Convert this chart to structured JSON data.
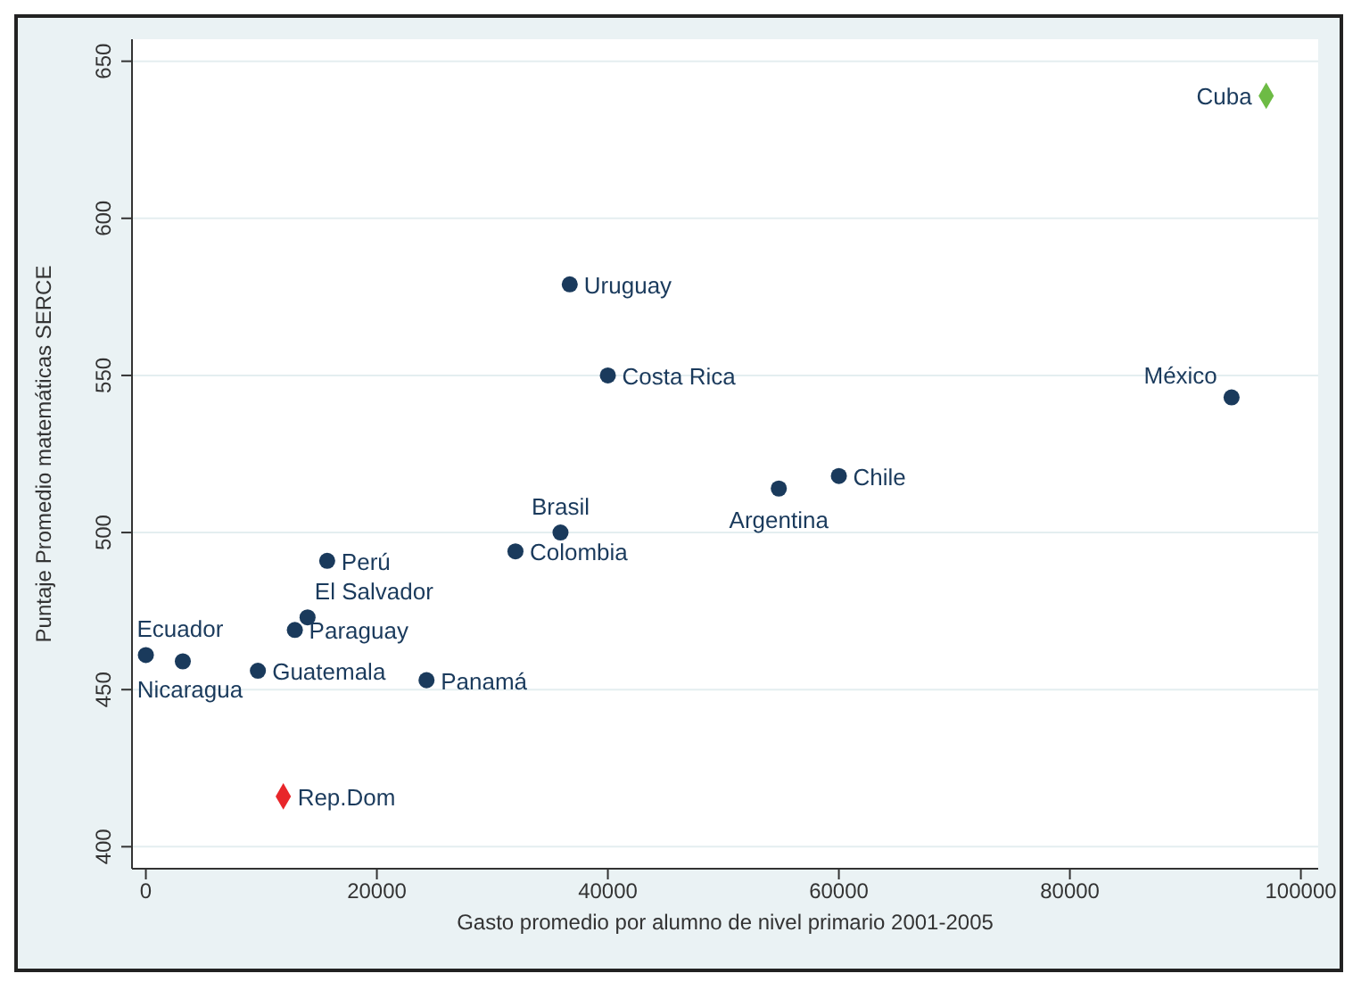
{
  "chart_data": {
    "type": "scatter",
    "xlabel": "Gasto promedio por alumno de nivel primario 2001-2005",
    "ylabel": "Puntaje Promedio matemáticas SERCE",
    "xlim": [
      -1200,
      101500
    ],
    "ylim": [
      393,
      657
    ],
    "xticks": [
      0,
      20000,
      40000,
      60000,
      80000,
      100000
    ],
    "yticks": [
      400,
      450,
      500,
      550,
      600,
      650
    ],
    "grid": "y",
    "series": [
      {
        "color": "#1a3a5c",
        "marker": "circle",
        "x": [
          36700,
          40000,
          94000,
          60000,
          54800,
          35900,
          32000,
          15700,
          14000,
          12900,
          0,
          3200,
          9700,
          24300
        ],
        "values": [
          579,
          550,
          543,
          518,
          514,
          500,
          494,
          491,
          473,
          469,
          461,
          459,
          456,
          453
        ]
      },
      {
        "color": "#e8262a",
        "marker": "diamond",
        "x": [
          11900
        ],
        "values": [
          416
        ]
      },
      {
        "color": "#6dbb45",
        "marker": "diamond",
        "x": [
          97000
        ],
        "values": [
          639
        ]
      }
    ],
    "annotations": [
      {
        "text": "Uruguay",
        "x": 36700,
        "y": 579
      },
      {
        "text": "Costa Rica",
        "x": 40000,
        "y": 550
      },
      {
        "text": "México",
        "x": 94000,
        "y": 543
      },
      {
        "text": "Chile",
        "x": 60000,
        "y": 518
      },
      {
        "text": "Argentina",
        "x": 54800,
        "y": 514
      },
      {
        "text": "Brasil",
        "x": 35900,
        "y": 500
      },
      {
        "text": "Colombia",
        "x": 32000,
        "y": 494
      },
      {
        "text": "Perú",
        "x": 15700,
        "y": 491
      },
      {
        "text": "El Salvador",
        "x": 14000,
        "y": 473
      },
      {
        "text": "Paraguay",
        "x": 12900,
        "y": 469
      },
      {
        "text": "Ecuador",
        "x": 0,
        "y": 461
      },
      {
        "text": "Nicaragua",
        "x": 3200,
        "y": 459
      },
      {
        "text": "Guatemala",
        "x": 9700,
        "y": 456
      },
      {
        "text": "Panamá",
        "x": 24300,
        "y": 453
      },
      {
        "text": "Rep.Dom",
        "x": 11900,
        "y": 416
      },
      {
        "text": "Cuba",
        "x": 97000,
        "y": 639
      }
    ]
  }
}
